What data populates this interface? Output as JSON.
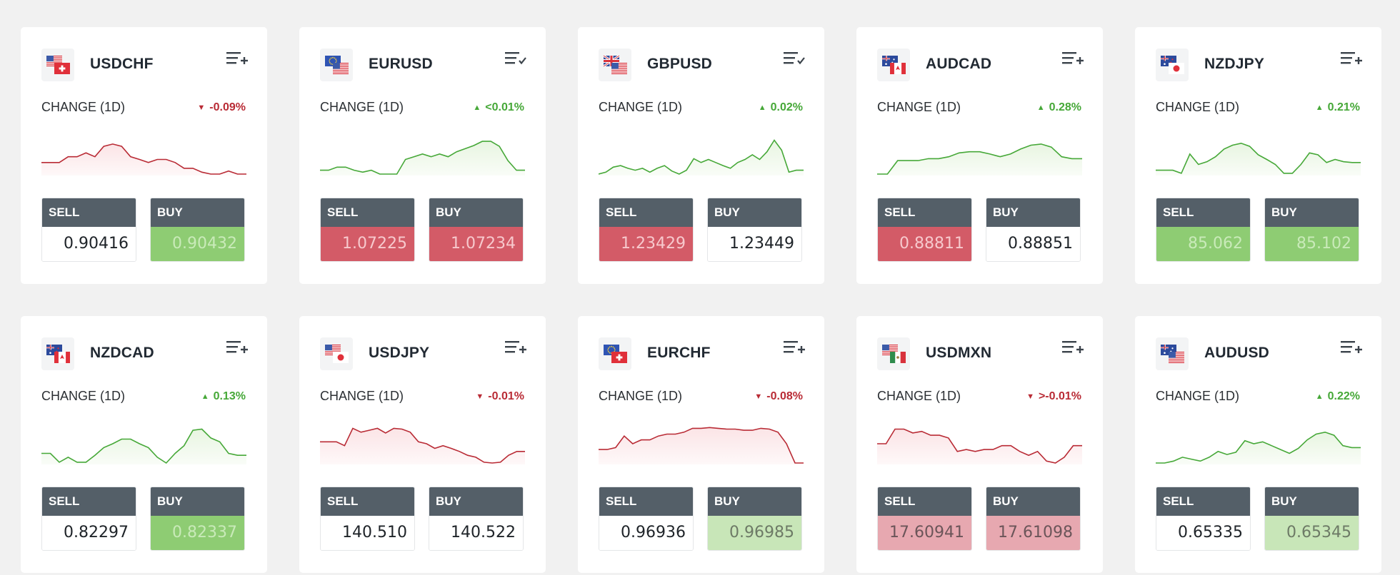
{
  "labels": {
    "change": "CHANGE (1D)",
    "sell": "SELL",
    "buy": "BUY"
  },
  "colors": {
    "up": "#46a838",
    "down": "#b92b35",
    "up_fill": "#e8f5e1",
    "down_fill": "#fbe4e6"
  },
  "cards": [
    {
      "symbol": "USDCHF",
      "flags": [
        "us",
        "ch"
      ],
      "watch": "add",
      "change": "-0.09%",
      "dir": "down",
      "sell": "0.90416",
      "sell_state": "none",
      "buy": "0.90432",
      "buy_state": "green",
      "spark": [
        0.3,
        0.3,
        0.3,
        0.45,
        0.45,
        0.55,
        0.45,
        0.72,
        0.78,
        0.72,
        0.45,
        0.38,
        0.3,
        0.38,
        0.38,
        0.3,
        0.15,
        0.15,
        0.05,
        0.0,
        0.0,
        0.08,
        0.0,
        0.0
      ]
    },
    {
      "symbol": "EURUSD",
      "flags": [
        "eu",
        "us"
      ],
      "watch": "check",
      "change": "<0.01%",
      "dir": "up",
      "sell": "1.07225",
      "sell_state": "red",
      "buy": "1.07234",
      "buy_state": "red",
      "spark": [
        0.1,
        0.1,
        0.18,
        0.18,
        0.1,
        0.05,
        0.1,
        0.0,
        0.0,
        0.0,
        0.38,
        0.45,
        0.52,
        0.45,
        0.52,
        0.45,
        0.58,
        0.66,
        0.74,
        0.85,
        0.85,
        0.72,
        0.35,
        0.1,
        0.1
      ]
    },
    {
      "symbol": "GBPUSD",
      "flags": [
        "gb",
        "us"
      ],
      "watch": "check",
      "change": "0.02%",
      "dir": "up",
      "sell": "1.23429",
      "sell_state": "red",
      "buy": "1.23449",
      "buy_state": "none",
      "spark": [
        0.0,
        0.05,
        0.18,
        0.22,
        0.15,
        0.1,
        0.15,
        0.05,
        0.15,
        0.22,
        0.08,
        0.0,
        0.1,
        0.4,
        0.3,
        0.38,
        0.3,
        0.22,
        0.15,
        0.3,
        0.38,
        0.5,
        0.38,
        0.58,
        0.88,
        0.62,
        0.05,
        0.1,
        0.1
      ]
    },
    {
      "symbol": "AUDCAD",
      "flags": [
        "au",
        "ca"
      ],
      "watch": "add",
      "change": "0.28%",
      "dir": "up",
      "sell": "0.88811",
      "sell_state": "red",
      "buy": "0.88851",
      "buy_state": "none",
      "spark": [
        0.0,
        0.0,
        0.35,
        0.35,
        0.35,
        0.4,
        0.4,
        0.45,
        0.55,
        0.58,
        0.58,
        0.52,
        0.45,
        0.52,
        0.65,
        0.75,
        0.78,
        0.7,
        0.45,
        0.4,
        0.4
      ]
    },
    {
      "symbol": "NZDJPY",
      "flags": [
        "nz",
        "jp"
      ],
      "watch": "add",
      "change": "0.21%",
      "dir": "up",
      "sell": "85.062",
      "sell_state": "green",
      "buy": "85.102",
      "buy_state": "green",
      "spark": [
        0.1,
        0.1,
        0.1,
        0.02,
        0.52,
        0.25,
        0.32,
        0.45,
        0.65,
        0.75,
        0.8,
        0.72,
        0.5,
        0.38,
        0.25,
        0.02,
        0.02,
        0.25,
        0.55,
        0.5,
        0.3,
        0.38,
        0.32,
        0.3,
        0.3
      ]
    },
    {
      "symbol": "NZDCAD",
      "flags": [
        "nz",
        "ca"
      ],
      "watch": "add",
      "change": "0.13%",
      "dir": "up",
      "sell": "0.82297",
      "sell_state": "none",
      "buy": "0.82337",
      "buy_state": "green",
      "spark": [
        0.25,
        0.25,
        0.02,
        0.15,
        0.02,
        0.02,
        0.2,
        0.4,
        0.5,
        0.62,
        0.62,
        0.5,
        0.4,
        0.15,
        0.0,
        0.25,
        0.45,
        0.85,
        0.88,
        0.65,
        0.55,
        0.25,
        0.2,
        0.2
      ]
    },
    {
      "symbol": "USDJPY",
      "flags": [
        "us",
        "jp"
      ],
      "watch": "add",
      "change": "-0.01%",
      "dir": "down",
      "sell": "140.510",
      "sell_state": "none",
      "buy": "140.522",
      "buy_state": "none",
      "spark": [
        0.55,
        0.55,
        0.55,
        0.45,
        0.9,
        0.8,
        0.85,
        0.9,
        0.78,
        0.9,
        0.88,
        0.8,
        0.55,
        0.5,
        0.38,
        0.45,
        0.38,
        0.3,
        0.2,
        0.15,
        0.02,
        0.0,
        0.02,
        0.2,
        0.3,
        0.3
      ]
    },
    {
      "symbol": "EURCHF",
      "flags": [
        "eu",
        "ch"
      ],
      "watch": "add",
      "change": "-0.08%",
      "dir": "down",
      "sell": "0.96936",
      "sell_state": "none",
      "buy": "0.96985",
      "buy_state": "lightgreen",
      "spark": [
        0.35,
        0.35,
        0.4,
        0.7,
        0.5,
        0.6,
        0.6,
        0.7,
        0.75,
        0.75,
        0.8,
        0.9,
        0.9,
        0.92,
        0.9,
        0.88,
        0.88,
        0.85,
        0.85,
        0.9,
        0.88,
        0.8,
        0.5,
        0.0,
        0.0
      ]
    },
    {
      "symbol": "USDMXN",
      "flags": [
        "us",
        "mx"
      ],
      "watch": "add",
      "change": ">-0.01%",
      "dir": "down",
      "sell": "17.60941",
      "sell_state": "lightred",
      "buy": "17.61098",
      "buy_state": "lightred",
      "spark": [
        0.5,
        0.5,
        0.88,
        0.88,
        0.78,
        0.82,
        0.72,
        0.72,
        0.65,
        0.3,
        0.35,
        0.3,
        0.35,
        0.35,
        0.45,
        0.45,
        0.3,
        0.2,
        0.3,
        0.05,
        0.0,
        0.15,
        0.45,
        0.45
      ]
    },
    {
      "symbol": "AUDUSD",
      "flags": [
        "au",
        "us"
      ],
      "watch": "add",
      "change": "0.22%",
      "dir": "up",
      "sell": "0.65335",
      "sell_state": "none",
      "buy": "0.65345",
      "buy_state": "lightgreen",
      "spark": [
        0.0,
        0.0,
        0.05,
        0.15,
        0.1,
        0.05,
        0.15,
        0.3,
        0.22,
        0.28,
        0.58,
        0.5,
        0.55,
        0.45,
        0.35,
        0.25,
        0.38,
        0.6,
        0.75,
        0.8,
        0.72,
        0.45,
        0.4,
        0.4
      ]
    }
  ]
}
